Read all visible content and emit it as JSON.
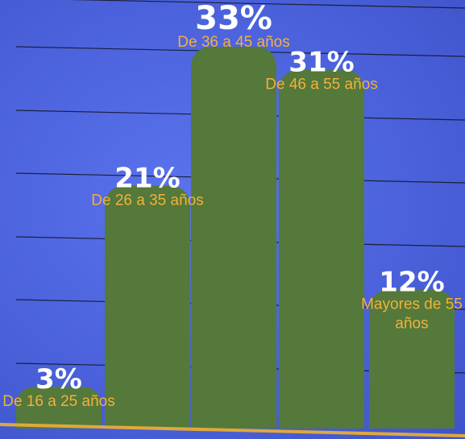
{
  "colors": {
    "background": "#4b62dc",
    "bar": "#54793a",
    "value_label": "#ffffff",
    "category_label": "#f2b13b",
    "gridline": "#1a1f3a",
    "baseline": "#e0a83c"
  },
  "chart_data": {
    "type": "bar",
    "categories": [
      "De 16 a 25 años",
      "De 26 a 35 años",
      "De 36 a 45 años",
      "De 46 a 55 años",
      "Mayores de 55 años"
    ],
    "category_label_lines": [
      [
        "De 16 a 25 años"
      ],
      [
        "De 26 a 35 años"
      ],
      [
        "De 36 a 45 años"
      ],
      [
        "De 46 a 55 años"
      ],
      [
        "Mayores de 55",
        "años"
      ]
    ],
    "values": [
      3,
      21,
      33,
      31,
      12
    ],
    "value_labels": [
      "3%",
      "21%",
      "33%",
      "31%",
      "12%"
    ],
    "unit": "%",
    "ylim": [
      0,
      33
    ],
    "grid": true,
    "legend": "none"
  }
}
